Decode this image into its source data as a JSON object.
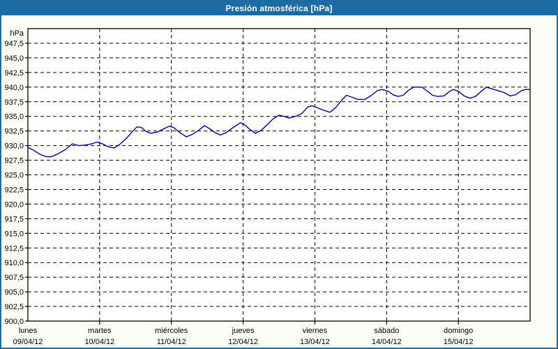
{
  "window": {
    "title": "Presión atmosférica [hPa]"
  },
  "colors": {
    "accent_blue": "#1d6ba3",
    "title_text": "#ffffff",
    "line_navy": "#0000a0",
    "grid": "#000000",
    "plot_bg": "#fffffe",
    "content_bg": "#fbfdf7"
  },
  "chart_data": {
    "type": "line",
    "title": "Presión atmosférica [hPa]",
    "legend": "none",
    "grid_style": "dashed",
    "y_axis": {
      "unit_label": "hPa",
      "min": 900,
      "max": 950,
      "tick_step": 2.5,
      "tick_labels": [
        "900,0",
        "902,5",
        "905,0",
        "907,5",
        "910,0",
        "912,5",
        "915,0",
        "917,5",
        "920,0",
        "922,5",
        "925,0",
        "927,5",
        "930,0",
        "932,5",
        "935,0",
        "937,5",
        "940,0",
        "942,5",
        "945,0",
        "947,5"
      ]
    },
    "x_axis": {
      "span_days": 7,
      "day_labels": [
        {
          "name": "lunes",
          "date": "09/04/12"
        },
        {
          "name": "martes",
          "date": "10/04/12"
        },
        {
          "name": "miércoles",
          "date": "11/04/12"
        },
        {
          "name": "jueves",
          "date": "12/04/12"
        },
        {
          "name": "viernes",
          "date": "13/04/12"
        },
        {
          "name": "sábado",
          "date": "14/04/12"
        },
        {
          "name": "domingo",
          "date": "15/04/12"
        }
      ]
    },
    "series": [
      {
        "name": "Presión atmosférica",
        "color": "#0000a0",
        "points_days_hpa": [
          [
            0.0,
            929.7
          ],
          [
            0.08,
            929.2
          ],
          [
            0.17,
            928.5
          ],
          [
            0.26,
            928.1
          ],
          [
            0.33,
            928.1
          ],
          [
            0.42,
            928.6
          ],
          [
            0.52,
            929.3
          ],
          [
            0.62,
            930.3
          ],
          [
            0.71,
            930.0
          ],
          [
            0.8,
            930.1
          ],
          [
            0.89,
            930.3
          ],
          [
            0.96,
            930.6
          ],
          [
            1.04,
            930.3
          ],
          [
            1.12,
            929.8
          ],
          [
            1.2,
            929.6
          ],
          [
            1.28,
            930.2
          ],
          [
            1.37,
            931.2
          ],
          [
            1.45,
            932.3
          ],
          [
            1.52,
            933.2
          ],
          [
            1.58,
            933.1
          ],
          [
            1.65,
            932.4
          ],
          [
            1.71,
            932.1
          ],
          [
            1.8,
            932.3
          ],
          [
            1.9,
            932.9
          ],
          [
            1.97,
            933.3
          ],
          [
            2.03,
            933.1
          ],
          [
            2.12,
            932.2
          ],
          [
            2.21,
            931.5
          ],
          [
            2.29,
            931.9
          ],
          [
            2.38,
            932.6
          ],
          [
            2.46,
            933.4
          ],
          [
            2.52,
            933.0
          ],
          [
            2.6,
            932.3
          ],
          [
            2.68,
            931.8
          ],
          [
            2.76,
            932.2
          ],
          [
            2.85,
            933.0
          ],
          [
            2.96,
            933.9
          ],
          [
            3.01,
            933.7
          ],
          [
            3.08,
            932.9
          ],
          [
            3.17,
            932.1
          ],
          [
            3.25,
            932.6
          ],
          [
            3.33,
            933.5
          ],
          [
            3.42,
            934.6
          ],
          [
            3.5,
            935.2
          ],
          [
            3.57,
            935.0
          ],
          [
            3.64,
            934.7
          ],
          [
            3.73,
            935.0
          ],
          [
            3.82,
            935.5
          ],
          [
            3.9,
            936.6
          ],
          [
            3.96,
            936.8
          ],
          [
            4.03,
            936.5
          ],
          [
            4.11,
            936.1
          ],
          [
            4.21,
            935.7
          ],
          [
            4.29,
            936.5
          ],
          [
            4.37,
            937.7
          ],
          [
            4.44,
            938.6
          ],
          [
            4.51,
            938.3
          ],
          [
            4.6,
            937.9
          ],
          [
            4.7,
            937.9
          ],
          [
            4.79,
            938.6
          ],
          [
            4.87,
            939.4
          ],
          [
            4.94,
            939.6
          ],
          [
            5.02,
            939.3
          ],
          [
            5.09,
            938.7
          ],
          [
            5.16,
            938.4
          ],
          [
            5.23,
            938.6
          ],
          [
            5.31,
            939.5
          ],
          [
            5.38,
            940.0
          ],
          [
            5.49,
            940.0
          ],
          [
            5.56,
            939.4
          ],
          [
            5.64,
            938.6
          ],
          [
            5.71,
            938.4
          ],
          [
            5.8,
            938.5
          ],
          [
            5.88,
            939.3
          ],
          [
            5.93,
            939.6
          ],
          [
            6.0,
            939.3
          ],
          [
            6.08,
            938.5
          ],
          [
            6.16,
            938.1
          ],
          [
            6.24,
            938.4
          ],
          [
            6.32,
            939.3
          ],
          [
            6.39,
            940.0
          ],
          [
            6.47,
            939.7
          ],
          [
            6.55,
            939.4
          ],
          [
            6.63,
            939.1
          ],
          [
            6.72,
            938.5
          ],
          [
            6.8,
            938.7
          ],
          [
            6.88,
            939.4
          ],
          [
            6.94,
            939.6
          ],
          [
            7.0,
            939.6
          ]
        ]
      }
    ]
  }
}
